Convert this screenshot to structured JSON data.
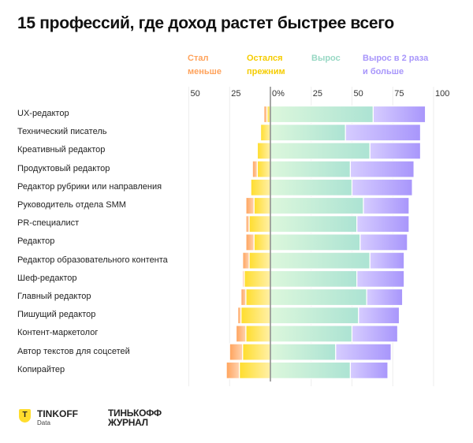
{
  "title": "15 профессий, где доход растет быстрее всего",
  "chart_data": {
    "type": "bar",
    "stacked": "diverging",
    "title": "15 профессий, где доход растет быстрее всего",
    "unit": "%",
    "xlim": [
      -50,
      100
    ],
    "ticks": [
      "50",
      "25",
      "0%",
      "25",
      "50",
      "75",
      "100"
    ],
    "tick_values": [
      -50,
      -25,
      0,
      25,
      50,
      75,
      100
    ],
    "grid": true,
    "legend_position": "top",
    "categories": [
      "UX-редактор",
      "Технический писатель",
      "Креативный редактор",
      "Продуктовый редактор",
      "Редактор рубрики или направления",
      "Руководитель отдела SMM",
      "PR-специалист",
      "Редактор",
      "Редактор образовательного контента",
      "Шеф-редактор",
      "Главный редактор",
      "Пишущий редактор",
      "Контент-маркетолог",
      "Автор текстов для соцсетей",
      "Копирайтер"
    ],
    "series": [
      {
        "name": "Стал меньше",
        "color": "#ffa35c",
        "values": [
          2,
          0,
          0,
          3,
          0,
          5,
          2,
          5,
          4,
          1,
          3,
          2,
          6,
          8,
          8
        ]
      },
      {
        "name": "Остался прежним",
        "color": "#ffdd2d",
        "values": [
          2,
          6,
          8,
          8,
          12,
          10,
          13,
          10,
          13,
          16,
          15,
          18,
          15,
          17,
          19
        ]
      },
      {
        "name": "Вырос",
        "color": "#a8e4d3",
        "values": [
          63,
          46,
          61,
          49,
          50,
          57,
          53,
          55,
          61,
          53,
          59,
          54,
          50,
          40,
          49
        ]
      },
      {
        "name": "Вырос в 2 раза и больше",
        "color": "#a896fb",
        "values": [
          32,
          46,
          31,
          39,
          37,
          28,
          32,
          29,
          21,
          29,
          22,
          25,
          28,
          34,
          23
        ]
      }
    ],
    "legend": [
      {
        "line1": "Стал",
        "line2": "меньше",
        "color": "#ffa35c"
      },
      {
        "line1": "Остался",
        "line2": "прежним",
        "color": "#f5cc00"
      },
      {
        "line1": "Вырос",
        "line2": "",
        "color": "#98d8c4"
      },
      {
        "line1": "Вырос в 2 раза",
        "line2": "и больше",
        "color": "#a896fb"
      }
    ]
  },
  "footer": {
    "brand": "TINKOFF",
    "brand_sub": "Data",
    "brand_icon": "T",
    "journal_line1": "ТИНЬКОФФ",
    "journal_line2": "ЖУРНАЛ"
  }
}
